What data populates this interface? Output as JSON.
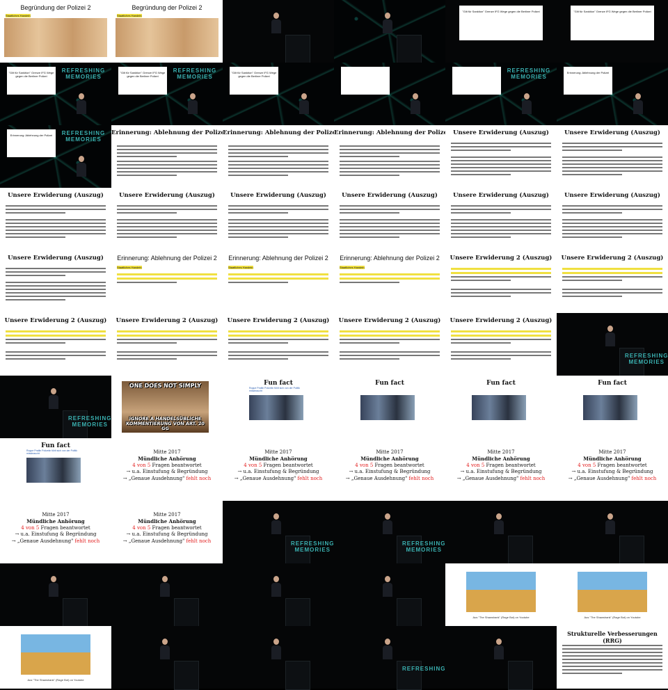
{
  "thumbnails": [
    {
      "kind": "slide-cartoon",
      "title": "Begründung der Polizei 2",
      "highlight": "Staatliches Handeln"
    },
    {
      "kind": "slide-cartoon",
      "title": "Begründung der Polizei 2",
      "highlight": "Staatliches Handeln"
    },
    {
      "kind": "speaker",
      "logo": ""
    },
    {
      "kind": "speaker-net",
      "logo": ""
    },
    {
      "kind": "slide-small",
      "caption": "\"Gilt für Sanktion\" Grenze IFG Wege gegen die Berliner Polizei"
    },
    {
      "kind": "slide-small",
      "caption": "\"Gilt für Sanktion\" Grenze IFG Wege gegen die Berliner Polizei"
    },
    {
      "kind": "net-slide",
      "caption": "\"Gilt für Sanktion\" Grenze IFG Wege gegen die Berliner Polizei",
      "logo": "REFRESHING MEMORIES"
    },
    {
      "kind": "net-slide",
      "caption": "\"Gilt für Sanktion\" Grenze IFG Wege gegen die Berliner Polizei",
      "logo": "REFRESHING MEMORIES"
    },
    {
      "kind": "net-slide",
      "caption": "\"Gilt für Sanktion\" Grenze IFG Wege gegen die Berliner Polizei",
      "logo": ""
    },
    {
      "kind": "net-slide",
      "caption": "",
      "logo": ""
    },
    {
      "kind": "net-slide",
      "caption": "",
      "logo": "REFRESHING MEMORIES"
    },
    {
      "kind": "net-slide",
      "caption": "Erinnerung: Ablehnung der Polizei",
      "logo": ""
    },
    {
      "kind": "net-slide",
      "caption": "Erinnerung: Ablehnung der Polizei",
      "logo": "REFRESHING MEMORIES"
    },
    {
      "kind": "slide-text",
      "title": "Erinnerung: Ablehnung der Polizei",
      "serif": true
    },
    {
      "kind": "slide-text",
      "title": "Erinnerung: Ablehnung der Polizei",
      "serif": true
    },
    {
      "kind": "slide-text",
      "title": "Erinnerung: Ablehnung der Polizei",
      "serif": true
    },
    {
      "kind": "slide-form",
      "title": "Unsere Erwiderung (Auszug)"
    },
    {
      "kind": "slide-form",
      "title": "Unsere Erwiderung (Auszug)"
    },
    {
      "kind": "slide-form",
      "title": "Unsere Erwiderung (Auszug)"
    },
    {
      "kind": "slide-form",
      "title": "Unsere Erwiderung (Auszug)"
    },
    {
      "kind": "slide-form",
      "title": "Unsere Erwiderung (Auszug)"
    },
    {
      "kind": "slide-form",
      "title": "Unsere Erwiderung (Auszug)"
    },
    {
      "kind": "slide-form",
      "title": "Unsere Erwiderung (Auszug)"
    },
    {
      "kind": "slide-form",
      "title": "Unsere Erwiderung (Auszug)"
    },
    {
      "kind": "slide-form",
      "title": "Unsere Erwiderung (Auszug)"
    },
    {
      "kind": "slide-yellow",
      "title": "Erinnerung: Ablehnung der Polizei 2",
      "highlight": "Staatliches Handeln"
    },
    {
      "kind": "slide-yellow",
      "title": "Erinnerung: Ablehnung der Polizei 2",
      "highlight": "Staatliches Handeln"
    },
    {
      "kind": "slide-yellow",
      "title": "Erinnerung: Ablehnung der Polizei 2",
      "highlight": "Staatliches Handeln"
    },
    {
      "kind": "slide-er2",
      "title": "Unsere Erwiderung 2 (Auszug)"
    },
    {
      "kind": "slide-er2",
      "title": "Unsere Erwiderung 2 (Auszug)"
    },
    {
      "kind": "slide-er2",
      "title": "Unsere Erwiderung 2 (Auszug)"
    },
    {
      "kind": "slide-er2",
      "title": "Unsere Erwiderung 2 (Auszug)"
    },
    {
      "kind": "slide-er2",
      "title": "Unsere Erwiderung 2 (Auszug)"
    },
    {
      "kind": "slide-er2",
      "title": "Unsere Erwiderung 2 (Auszug)"
    },
    {
      "kind": "slide-er2",
      "title": "Unsere Erwiderung 2 (Auszug)"
    },
    {
      "kind": "speaker",
      "logo": "REFRESHING MEMORIES"
    },
    {
      "kind": "speaker",
      "logo": "REFRESHING MEMORIES"
    },
    {
      "kind": "meme",
      "top": "ONE DOES NOT SIMPLY",
      "bottom": "IGNORE A HANDELSÜBLICHE KOMMENTIERUNG VON ART. 20 GG"
    },
    {
      "kind": "funfact",
      "title": "Fun fact",
      "sub": "Rogue Pratlin Polizeiin fühlt sich von der Politik missbraucht"
    },
    {
      "kind": "funfact",
      "title": "Fun fact",
      "sub": ""
    },
    {
      "kind": "funfact",
      "title": "Fun fact",
      "sub": ""
    },
    {
      "kind": "funfact",
      "title": "Fun fact",
      "sub": ""
    },
    {
      "kind": "funfact",
      "title": "Fun fact",
      "sub": "Rogue Pratlin Polizeiin fühlt sich von der Politik missbraucht"
    },
    {
      "kind": "mitte",
      "l1": "Mitte 2017",
      "l2": "Mündliche Anhörung",
      "l3a": "4 von 5",
      "l3b": "Fragen beantwortet",
      "l4": "→ u.a. Einstufung & Begründung",
      "l5a": "→ „Genaue Ausdehnung\"",
      "l5b": "fehlt noch"
    },
    {
      "kind": "mitte",
      "l1": "Mitte 2017",
      "l2": "Mündliche Anhörung",
      "l3a": "4 von 5",
      "l3b": "Fragen beantwortet",
      "l4": "→ u.a. Einstufung & Begründung",
      "l5a": "→ „Genaue Ausdehnung\"",
      "l5b": "fehlt noch"
    },
    {
      "kind": "mitte",
      "l1": "Mitte 2017",
      "l2": "Mündliche Anhörung",
      "l3a": "4 von 5",
      "l3b": "Fragen beantwortet",
      "l4": "→ u.a. Einstufung & Begründung",
      "l5a": "→ „Genaue Ausdehnung\"",
      "l5b": "fehlt noch"
    },
    {
      "kind": "mitte",
      "l1": "Mitte 2017",
      "l2": "Mündliche Anhörung",
      "l3a": "4 von 5",
      "l3b": "Fragen beantwortet",
      "l4": "→ u.a. Einstufung & Begründung",
      "l5a": "→ „Genaue Ausdehnung\"",
      "l5b": "fehlt noch"
    },
    {
      "kind": "mitte",
      "l1": "Mitte 2017",
      "l2": "Mündliche Anhörung",
      "l3a": "4 von 5",
      "l3b": "Fragen beantwortet",
      "l4": "→ u.a. Einstufung & Begründung",
      "l5a": "→ „Genaue Ausdehnung\"",
      "l5b": "fehlt noch"
    },
    {
      "kind": "mitte",
      "l1": "Mitte 2017",
      "l2": "Mündliche Anhörung",
      "l3a": "4 von 5",
      "l3b": "Fragen beantwortet",
      "l4": "→ u.a. Einstufung & Begründung",
      "l5a": "→ „Genaue Ausdehnung\"",
      "l5b": "fehlt noch"
    },
    {
      "kind": "mitte",
      "l1": "Mitte 2017",
      "l2": "Mündliche Anhörung",
      "l3a": "4 von 5",
      "l3b": "Fragen beantwortet",
      "l4": "→ u.a. Einstufung & Begründung",
      "l5a": "→ „Genaue Ausdehnung\"",
      "l5b": "fehlt noch"
    },
    {
      "kind": "speaker",
      "logo": "REFRESHING MEMORIES"
    },
    {
      "kind": "speaker",
      "logo": "REFRESHING MEMORIES"
    },
    {
      "kind": "speaker",
      "logo": ""
    },
    {
      "kind": "speaker",
      "logo": ""
    },
    {
      "kind": "speaker",
      "logo": ""
    },
    {
      "kind": "speaker",
      "logo": ""
    },
    {
      "kind": "speaker",
      "logo": ""
    },
    {
      "kind": "speaker",
      "logo": ""
    },
    {
      "kind": "simpson",
      "caption": "Aus \"The Shawshank\" (Rage Bot) on Youtube"
    },
    {
      "kind": "simpson",
      "caption": "Aus \"The Shawshank\" (Rage Bot) on Youtube"
    },
    {
      "kind": "simpson",
      "caption": "Aus \"The Shawshank\" (Rage Bot) on Youtube"
    },
    {
      "kind": "speaker",
      "logo": ""
    },
    {
      "kind": "speaker",
      "logo": ""
    },
    {
      "kind": "speaker",
      "logo": "REFRESHING"
    },
    {
      "kind": "speaker",
      "logo": ""
    },
    {
      "kind": "rrg",
      "title": "Strukturelle Verbesserungen (RRG)"
    }
  ]
}
